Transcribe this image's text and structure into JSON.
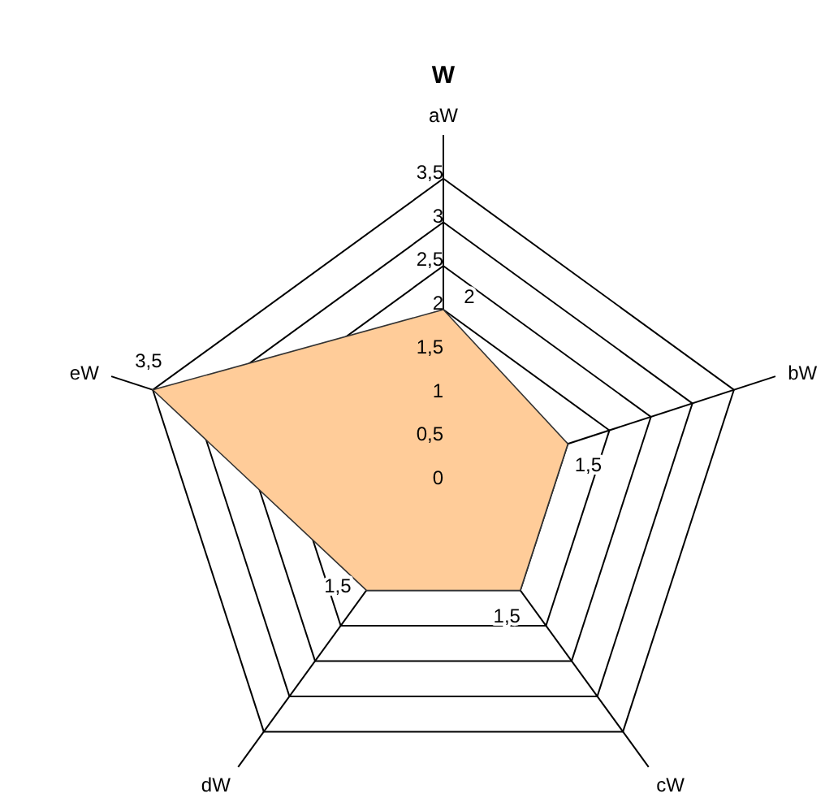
{
  "chart_data": {
    "type": "radar",
    "title": "W",
    "categories": [
      "aW",
      "bW",
      "cW",
      "dW",
      "eW"
    ],
    "series": [
      {
        "color": "#ffcc99",
        "values": [
          2,
          1.5,
          1.5,
          1.5,
          3.5
        ],
        "value_labels": [
          "2",
          "1,5",
          "1,5",
          "1,5",
          "3,5"
        ]
      }
    ],
    "ylim": [
      0,
      3.5
    ],
    "yticks": [
      {
        "value": 0,
        "label": "0"
      },
      {
        "value": 0.5,
        "label": "0,5"
      },
      {
        "value": 1,
        "label": "1"
      },
      {
        "value": 1.5,
        "label": "1,5"
      },
      {
        "value": 2,
        "label": "2"
      },
      {
        "value": 2.5,
        "label": "2,5"
      },
      {
        "value": 3,
        "label": "3"
      },
      {
        "value": 3.5,
        "label": "3,5"
      }
    ],
    "grid": true,
    "legend": false,
    "marker": "none"
  }
}
